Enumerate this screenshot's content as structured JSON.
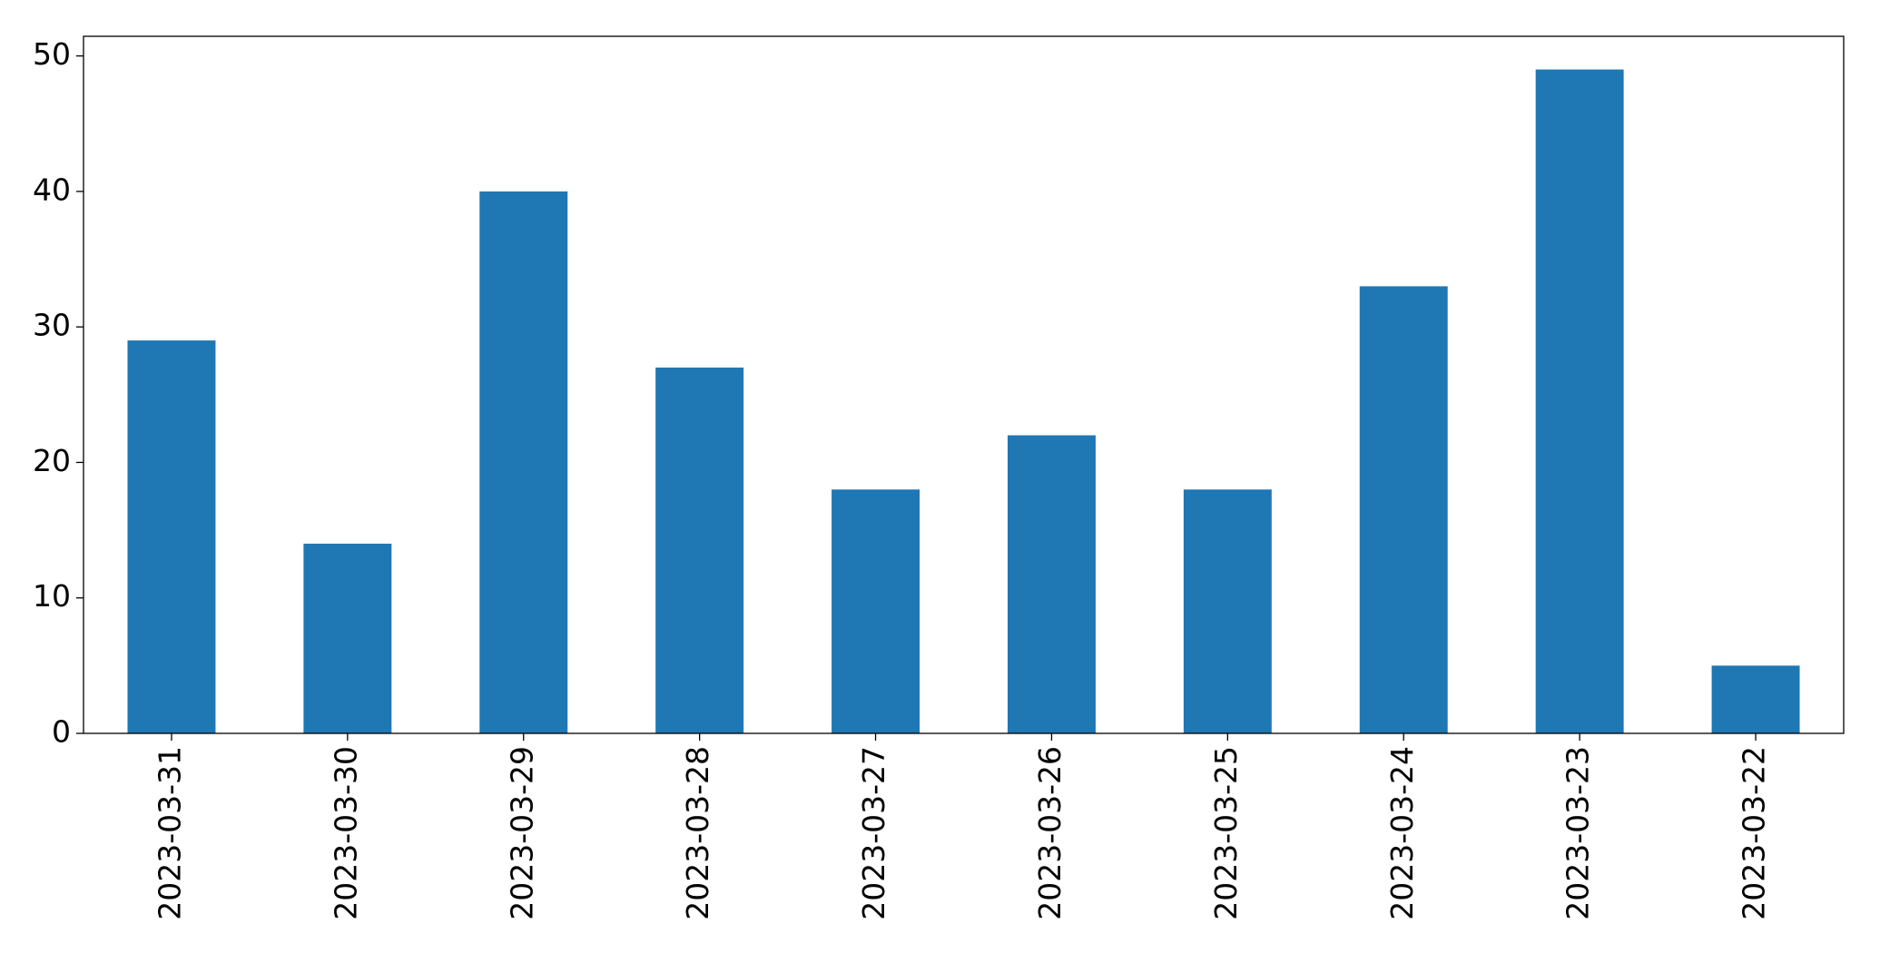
{
  "chart_data": {
    "type": "bar",
    "categories": [
      "2023-03-31",
      "2023-03-30",
      "2023-03-29",
      "2023-03-28",
      "2023-03-27",
      "2023-03-26",
      "2023-03-25",
      "2023-03-24",
      "2023-03-23",
      "2023-03-22"
    ],
    "values": [
      29,
      14,
      40,
      27,
      18,
      22,
      18,
      33,
      49,
      5
    ],
    "color": "#1f77b4",
    "ylim": [
      0,
      51.45
    ],
    "yticks": [
      0,
      10,
      20,
      30,
      40,
      50
    ],
    "grid": false
  }
}
